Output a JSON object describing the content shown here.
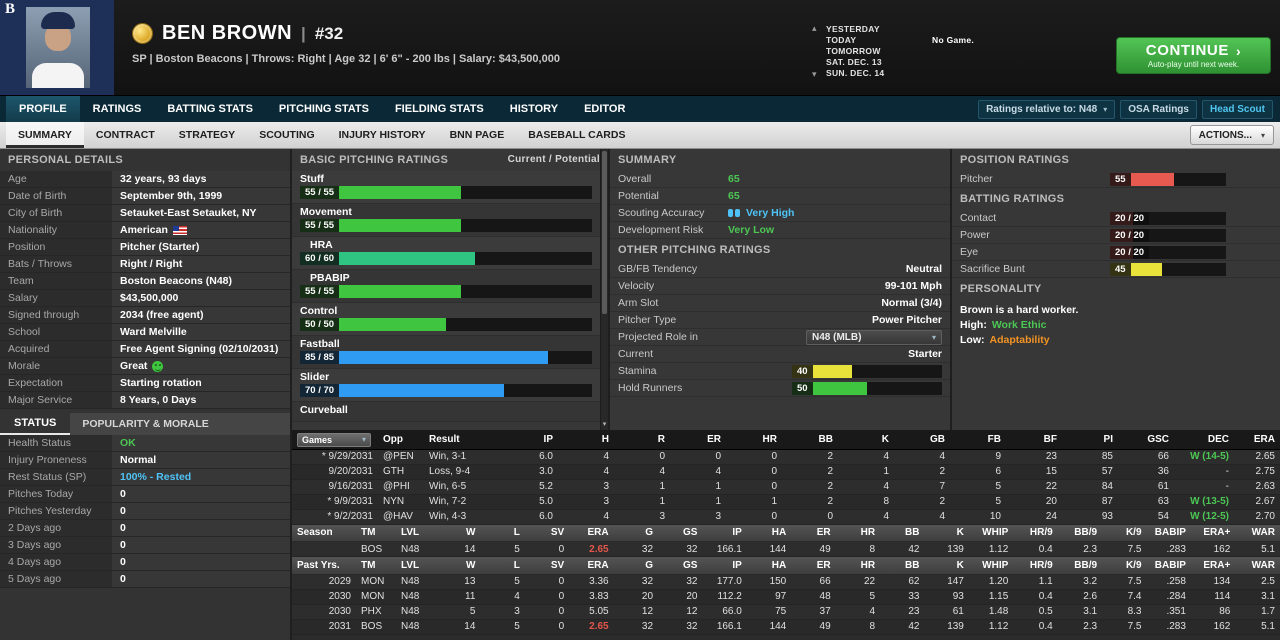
{
  "colors": {
    "accent_green": "#3fc53f",
    "accent_teal": "#2fc482",
    "accent_blue": "#2f9bf2",
    "accent_yellow": "#e8e23a",
    "accent_red": "#e65a50",
    "text_green": "#4cc654",
    "text_blue": "#4fc3f7",
    "text_orange": "#f39324",
    "text_red": "#e2564b",
    "nav_bg": "#0b2836",
    "continue_green": "#3faf46"
  },
  "icons": {
    "caret_down": "▾",
    "chevron_up": "▴",
    "chevron_down": "▾",
    "arrow_right": "›"
  },
  "header": {
    "team_logo": "B",
    "player_name": "BEN BROWN",
    "separator": "|",
    "number": "#32",
    "subtitle": "SP | Boston Beacons | Throws: Right | Age 32 | 6' 6\" - 200 lbs | Salary: $43,500,000",
    "schedule": {
      "rows": [
        {
          "label": "YESTERDAY",
          "note": ""
        },
        {
          "label": "TODAY",
          "note": "No Game."
        },
        {
          "label": "TOMORROW",
          "note": ""
        },
        {
          "label": "SAT. DEC. 13",
          "note": ""
        },
        {
          "label": "SUN. DEC. 14",
          "note": ""
        }
      ]
    },
    "continue_button": {
      "label": "CONTINUE",
      "arrow": "›",
      "sub": "Auto-play until next week."
    }
  },
  "main_nav": {
    "tabs": [
      "PROFILE",
      "RATINGS",
      "BATTING STATS",
      "PITCHING STATS",
      "FIELDING STATS",
      "HISTORY",
      "EDITOR"
    ],
    "active_tab": "PROFILE",
    "ratings_select": "Ratings relative to: N48",
    "osa_button": "OSA Ratings",
    "head_scout_button": "Head Scout"
  },
  "sub_nav": {
    "tabs": [
      "SUMMARY",
      "CONTRACT",
      "STRATEGY",
      "SCOUTING",
      "INJURY HISTORY",
      "BNN PAGE",
      "BASEBALL CARDS"
    ],
    "active_tab": "SUMMARY",
    "actions_button": "ACTIONS..."
  },
  "personal_details": {
    "title": "PERSONAL DETAILS",
    "rows": [
      {
        "label": "Age",
        "value": "32 years, 93 days"
      },
      {
        "label": "Date of Birth",
        "value": "September 9th, 1999"
      },
      {
        "label": "City of Birth",
        "value": "Setauket-East Setauket, NY"
      },
      {
        "label": "Nationality",
        "value": "American",
        "icon": "us-flag"
      },
      {
        "label": "Position",
        "value": "Pitcher (Starter)"
      },
      {
        "label": "Bats / Throws",
        "value": "Right / Right"
      },
      {
        "label": "Team",
        "value": "Boston Beacons (N48)"
      },
      {
        "label": "Salary",
        "value": "$43,500,000"
      },
      {
        "label": "Signed through",
        "value": "2034 (free agent)"
      },
      {
        "label": "School",
        "value": "Ward Melville"
      },
      {
        "label": "Acquired",
        "value": "Free Agent Signing (02/10/2031)"
      },
      {
        "label": "Morale",
        "value": "Great",
        "icon": "smiley"
      },
      {
        "label": "Expectation",
        "value": "Starting rotation"
      },
      {
        "label": "Major Service",
        "value": "8 Years, 0 Days"
      }
    ]
  },
  "status_panel": {
    "tab_status": "STATUS",
    "tab_popularity": "POPULARITY & MORALE",
    "rows": [
      {
        "label": "Health Status",
        "value": "OK",
        "color": "green"
      },
      {
        "label": "Injury Proneness",
        "value": "Normal"
      },
      {
        "label": "Rest Status (SP)",
        "value": "100% - Rested",
        "color": "blue"
      },
      {
        "label": "Pitches Today",
        "value": "0"
      },
      {
        "label": "Pitches Yesterday",
        "value": "0"
      },
      {
        "label": "2 Days ago",
        "value": "0"
      },
      {
        "label": "3 Days ago",
        "value": "0"
      },
      {
        "label": "4 Days ago",
        "value": "0"
      },
      {
        "label": "5 Days ago",
        "value": "0"
      }
    ]
  },
  "pitching_ratings": {
    "title": "BASIC PITCHING RATINGS",
    "scale_note": "Current / Potential",
    "bars": [
      {
        "label": "Stuff",
        "value": "55 / 55",
        "pct": 55,
        "color": "green"
      },
      {
        "label": "Movement",
        "value": "55 / 55",
        "pct": 55,
        "color": "green"
      },
      {
        "label": "HRA",
        "value": "60 / 60",
        "pct": 60,
        "color": "teal",
        "indent": true
      },
      {
        "label": "PBABIP",
        "value": "55 / 55",
        "pct": 55,
        "color": "green",
        "indent": true
      },
      {
        "label": "Control",
        "value": "50 / 50",
        "pct": 50,
        "color": "green"
      },
      {
        "label": "Fastball",
        "value": "85 / 85",
        "pct": 85,
        "color": "blue"
      },
      {
        "label": "Slider",
        "value": "70 / 70",
        "pct": 70,
        "color": "blue"
      },
      {
        "label": "Curveball",
        "value": "",
        "pct": 0,
        "color": "green"
      }
    ]
  },
  "summary_panel": {
    "title": "SUMMARY",
    "overall": {
      "label": "Overall",
      "value": "65"
    },
    "potential": {
      "label": "Potential",
      "value": "65"
    },
    "scouting_accuracy": {
      "label": "Scouting Accuracy",
      "value": "Very High"
    },
    "development_risk": {
      "label": "Development Risk",
      "value": "Very Low"
    },
    "other_title": "OTHER PITCHING RATINGS",
    "rows": [
      {
        "label": "GB/FB Tendency",
        "value": "Neutral"
      },
      {
        "label": "Velocity",
        "value": "99-101 Mph"
      },
      {
        "label": "Arm Slot",
        "value": "Normal (3/4)"
      },
      {
        "label": "Pitcher Type",
        "value": "Power Pitcher"
      }
    ],
    "projected_role": {
      "label": "Projected Role in",
      "value": "N48 (MLB)"
    },
    "current": {
      "label": "Current",
      "value": "Starter"
    },
    "bars": [
      {
        "label": "Stamina",
        "value": "40",
        "pct": 40,
        "color": "yellow"
      },
      {
        "label": "Hold Runners",
        "value": "50",
        "pct": 50,
        "color": "green"
      }
    ]
  },
  "position_ratings": {
    "title": "POSITION RATINGS",
    "bars": [
      {
        "label": "Pitcher",
        "value": "55",
        "pct": 55,
        "color": "red"
      }
    ]
  },
  "batting_ratings": {
    "title": "BATTING RATINGS",
    "bars": [
      {
        "label": "Contact",
        "value": "20 / 20",
        "pct": 20,
        "color": "red"
      },
      {
        "label": "Power",
        "value": "20 / 20",
        "pct": 20,
        "color": "red"
      },
      {
        "label": "Eye",
        "value": "20 / 20",
        "pct": 20,
        "color": "red"
      },
      {
        "label": "Sacrifice Bunt",
        "value": "45",
        "pct": 45,
        "color": "yellow"
      }
    ]
  },
  "personality": {
    "title": "PERSONALITY",
    "line1": "Brown is a hard worker.",
    "high_label": "High:",
    "high_value": "Work Ethic",
    "low_label": "Low:",
    "low_value": "Adaptability"
  },
  "game_log": {
    "filter_label": "Games",
    "head": [
      "Opp",
      "Result",
      "IP",
      "H",
      "R",
      "ER",
      "HR",
      "BB",
      "K",
      "GB",
      "FB",
      "BF",
      "PI",
      "GSC",
      "DEC",
      "ERA"
    ],
    "rows": [
      [
        "* 9/29/2031",
        "@PEN",
        "Win, 3-1",
        "6.0",
        "4",
        "0",
        "0",
        "0",
        "2",
        "4",
        "4",
        "9",
        "23",
        "85",
        "66",
        {
          "t": "W (14-5)",
          "c": "green"
        },
        "2.65"
      ],
      [
        "9/20/2031",
        "GTH",
        "Loss, 9-4",
        "3.0",
        "4",
        "4",
        "4",
        "0",
        "2",
        "1",
        "2",
        "6",
        "15",
        "57",
        "36",
        "-",
        "2.75"
      ],
      [
        "9/16/2031",
        "@PHI",
        "Win, 6-5",
        "5.2",
        "3",
        "1",
        "1",
        "0",
        "2",
        "4",
        "7",
        "5",
        "22",
        "84",
        "61",
        "-",
        "2.63"
      ],
      [
        "* 9/9/2031",
        "NYN",
        "Win, 7-2",
        "5.0",
        "3",
        "1",
        "1",
        "1",
        "2",
        "8",
        "2",
        "5",
        "20",
        "87",
        "63",
        {
          "t": "W (13-5)",
          "c": "green"
        },
        "2.67"
      ],
      [
        "* 9/2/2031",
        "@HAV",
        "Win, 4-3",
        "6.0",
        "4",
        "3",
        "3",
        "0",
        "0",
        "4",
        "4",
        "10",
        "24",
        "93",
        "54",
        {
          "t": "W (12-5)",
          "c": "green"
        },
        "2.70"
      ]
    ]
  },
  "season_stats": {
    "head": [
      "Season",
      "TM",
      "LVL",
      "W",
      "L",
      "SV",
      "ERA",
      "G",
      "GS",
      "IP",
      "HA",
      "ER",
      "HR",
      "BB",
      "K",
      "WHIP",
      "HR/9",
      "BB/9",
      "K/9",
      "BABIP",
      "ERA+",
      "WAR"
    ],
    "rows": [
      [
        "",
        "BOS",
        "N48",
        "14",
        "5",
        "0",
        {
          "t": "2.65",
          "c": "red"
        },
        "32",
        "32",
        "166.1",
        "144",
        "49",
        "8",
        "42",
        "139",
        "1.12",
        "0.4",
        "2.3",
        "7.5",
        ".283",
        "162",
        "5.1"
      ]
    ]
  },
  "past_years": {
    "head": [
      "Past Yrs.",
      "TM",
      "LVL",
      "W",
      "L",
      "SV",
      "ERA",
      "G",
      "GS",
      "IP",
      "HA",
      "ER",
      "HR",
      "BB",
      "K",
      "WHIP",
      "HR/9",
      "BB/9",
      "K/9",
      "BABIP",
      "ERA+",
      "WAR"
    ],
    "rows": [
      [
        "2029",
        "MON",
        "N48",
        "13",
        "5",
        "0",
        "3.36",
        "32",
        "32",
        "177.0",
        "150",
        "66",
        "22",
        "62",
        "147",
        "1.20",
        "1.1",
        "3.2",
        "7.5",
        ".258",
        "134",
        "2.5"
      ],
      [
        "2030",
        "MON",
        "N48",
        "11",
        "4",
        "0",
        "3.83",
        "20",
        "20",
        "112.2",
        "97",
        "48",
        "5",
        "33",
        "93",
        "1.15",
        "0.4",
        "2.6",
        "7.4",
        ".284",
        "114",
        "3.1"
      ],
      [
        "2030",
        "PHX",
        "N48",
        "5",
        "3",
        "0",
        "5.05",
        "12",
        "12",
        "66.0",
        "75",
        "37",
        "4",
        "23",
        "61",
        "1.48",
        "0.5",
        "3.1",
        "8.3",
        ".351",
        "86",
        "1.7"
      ],
      [
        "2031",
        "BOS",
        "N48",
        "14",
        "5",
        "0",
        {
          "t": "2.65",
          "c": "red"
        },
        "32",
        "32",
        "166.1",
        "144",
        "49",
        "8",
        "42",
        "139",
        "1.12",
        "0.4",
        "2.3",
        "7.5",
        ".283",
        "162",
        "5.1"
      ]
    ]
  }
}
